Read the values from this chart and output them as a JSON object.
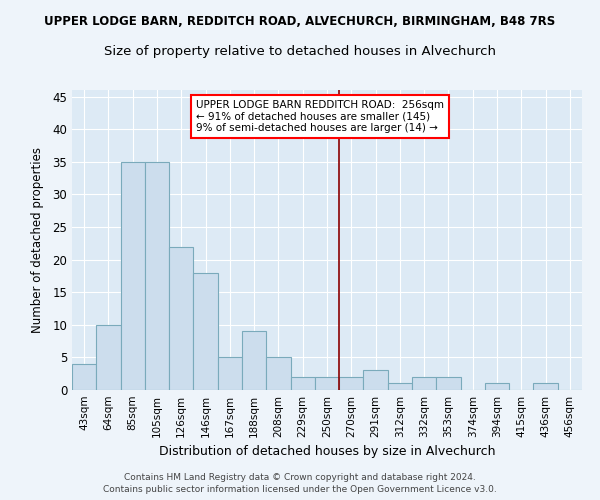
{
  "title": "UPPER LODGE BARN, REDDITCH ROAD, ALVECHURCH, BIRMINGHAM, B48 7RS",
  "subtitle": "Size of property relative to detached houses in Alvechurch",
  "xlabel": "Distribution of detached houses by size in Alvechurch",
  "ylabel": "Number of detached properties",
  "categories": [
    "43sqm",
    "64sqm",
    "85sqm",
    "105sqm",
    "126sqm",
    "146sqm",
    "167sqm",
    "188sqm",
    "208sqm",
    "229sqm",
    "250sqm",
    "270sqm",
    "291sqm",
    "312sqm",
    "332sqm",
    "353sqm",
    "374sqm",
    "394sqm",
    "415sqm",
    "436sqm",
    "456sqm"
  ],
  "values": [
    4,
    10,
    35,
    35,
    22,
    18,
    5,
    9,
    5,
    2,
    2,
    2,
    3,
    1,
    2,
    2,
    0,
    1,
    0,
    1,
    0
  ],
  "bar_color": "#ccdded",
  "bar_edge_color": "#7aaabb",
  "vline_pos": 10.5,
  "annotation_line1": "UPPER LODGE BARN REDDITCH ROAD:  256sqm",
  "annotation_line2": "← 91% of detached houses are smaller (145)",
  "annotation_line3": "9% of semi-detached houses are larger (14) →",
  "ylim": [
    0,
    46
  ],
  "yticks": [
    0,
    5,
    10,
    15,
    20,
    25,
    30,
    35,
    40,
    45
  ],
  "footer1": "Contains HM Land Registry data © Crown copyright and database right 2024.",
  "footer2": "Contains public sector information licensed under the Open Government Licence v3.0.",
  "fig_background": "#eef4fa",
  "plot_background": "#ddeaf5",
  "grid_color": "#ffffff"
}
